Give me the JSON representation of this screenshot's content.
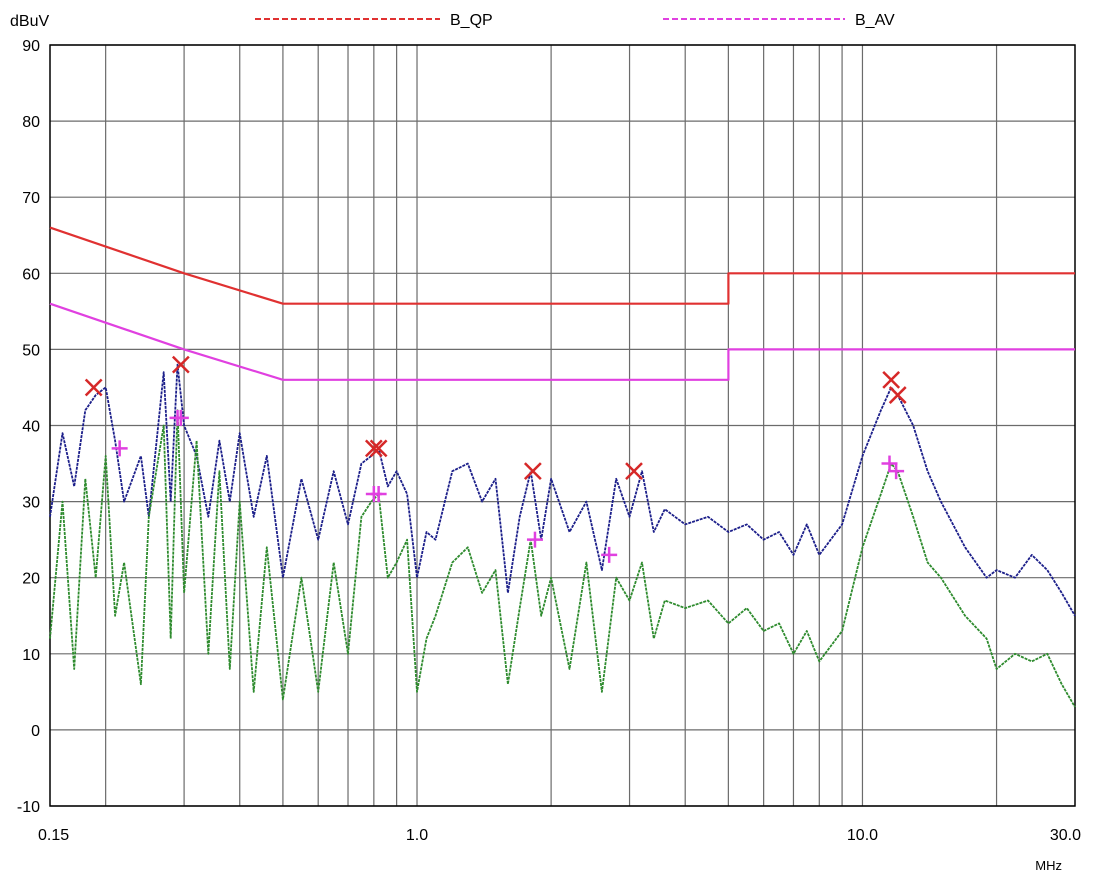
{
  "chart_data": {
    "type": "line",
    "xlabel": "MHz",
    "ylabel": "dBuV",
    "xscale": "log",
    "xlim": [
      0.15,
      30.0
    ],
    "ylim": [
      -10,
      90
    ],
    "grid": true,
    "legend_position": "top",
    "x_tick_labels": [
      {
        "value": 0.15,
        "label": "0.15"
      },
      {
        "value": 1.0,
        "label": "1.0"
      },
      {
        "value": 10.0,
        "label": "10.0"
      },
      {
        "value": 30.0,
        "label": "30.0"
      }
    ],
    "y_ticks": [
      -10,
      0,
      10,
      20,
      30,
      40,
      50,
      60,
      70,
      80,
      90
    ],
    "series": [
      {
        "name": "B_QP",
        "role": "limit",
        "color": "#e03131",
        "x": [
          0.15,
          0.3,
          0.5,
          5.0,
          5.0,
          30.0
        ],
        "y": [
          66,
          60,
          56,
          56,
          60,
          60
        ]
      },
      {
        "name": "B_AV",
        "role": "limit",
        "color": "#e040e0",
        "x": [
          0.15,
          0.3,
          0.5,
          5.0,
          5.0,
          30.0
        ],
        "y": [
          56,
          50,
          46,
          46,
          50,
          50
        ]
      },
      {
        "role": "measurement-peak",
        "color": "#1c1f8a",
        "x": [
          0.15,
          0.16,
          0.17,
          0.18,
          0.19,
          0.2,
          0.21,
          0.22,
          0.24,
          0.25,
          0.27,
          0.28,
          0.29,
          0.3,
          0.32,
          0.34,
          0.36,
          0.38,
          0.4,
          0.43,
          0.46,
          0.5,
          0.55,
          0.6,
          0.65,
          0.7,
          0.75,
          0.79,
          0.82,
          0.86,
          0.9,
          0.95,
          1.0,
          1.05,
          1.1,
          1.2,
          1.3,
          1.4,
          1.5,
          1.6,
          1.7,
          1.8,
          1.9,
          2.0,
          2.2,
          2.4,
          2.6,
          2.8,
          3.0,
          3.2,
          3.4,
          3.6,
          4.0,
          4.5,
          5.0,
          5.5,
          6.0,
          6.5,
          7.0,
          7.5,
          8.0,
          9.0,
          10.0,
          11.0,
          11.6,
          12.0,
          13.0,
          14.0,
          15.0,
          17.0,
          19.0,
          20.0,
          22.0,
          24.0,
          26.0,
          28.0,
          30.0
        ],
        "y": [
          28,
          39,
          32,
          42,
          44,
          45,
          38,
          30,
          36,
          28,
          47,
          30,
          48,
          40,
          36,
          28,
          38,
          30,
          39,
          28,
          36,
          20,
          33,
          25,
          34,
          27,
          35,
          36,
          37,
          32,
          34,
          31,
          20,
          26,
          25,
          34,
          35,
          30,
          33,
          18,
          28,
          34,
          25,
          33,
          26,
          30,
          21,
          33,
          28,
          34,
          26,
          29,
          27,
          28,
          26,
          27,
          25,
          26,
          23,
          27,
          23,
          27,
          36,
          42,
          45,
          44,
          40,
          34,
          30,
          24,
          20,
          21,
          20,
          23,
          21,
          18,
          15
        ]
      },
      {
        "role": "measurement-average",
        "color": "#2e8b2e",
        "x": [
          0.15,
          0.16,
          0.17,
          0.18,
          0.19,
          0.2,
          0.21,
          0.22,
          0.24,
          0.25,
          0.27,
          0.28,
          0.29,
          0.3,
          0.32,
          0.34,
          0.36,
          0.38,
          0.4,
          0.43,
          0.46,
          0.5,
          0.55,
          0.6,
          0.65,
          0.7,
          0.75,
          0.79,
          0.82,
          0.86,
          0.9,
          0.95,
          1.0,
          1.05,
          1.1,
          1.2,
          1.3,
          1.4,
          1.5,
          1.6,
          1.7,
          1.8,
          1.9,
          2.0,
          2.2,
          2.4,
          2.6,
          2.8,
          3.0,
          3.2,
          3.4,
          3.6,
          4.0,
          4.5,
          5.0,
          5.5,
          6.0,
          6.5,
          7.0,
          7.5,
          8.0,
          9.0,
          10.0,
          11.0,
          11.6,
          12.0,
          13.0,
          14.0,
          15.0,
          17.0,
          19.0,
          20.0,
          22.0,
          24.0,
          26.0,
          28.0,
          30.0
        ],
        "y": [
          12,
          30,
          8,
          33,
          20,
          36,
          15,
          22,
          6,
          28,
          40,
          12,
          42,
          18,
          38,
          10,
          34,
          8,
          30,
          5,
          24,
          4,
          20,
          5,
          22,
          10,
          28,
          30,
          31,
          20,
          22,
          25,
          5,
          12,
          15,
          22,
          24,
          18,
          21,
          6,
          16,
          25,
          15,
          20,
          8,
          22,
          5,
          20,
          17,
          22,
          12,
          17,
          16,
          17,
          14,
          16,
          13,
          14,
          10,
          13,
          9,
          13,
          24,
          31,
          35,
          34,
          28,
          22,
          20,
          15,
          12,
          8,
          10,
          9,
          10,
          6,
          3
        ]
      }
    ],
    "markers": {
      "qp_peaks": [
        {
          "x": 0.188,
          "y": 45
        },
        {
          "x": 0.295,
          "y": 48
        },
        {
          "x": 0.8,
          "y": 37
        },
        {
          "x": 0.82,
          "y": 37
        },
        {
          "x": 1.82,
          "y": 34
        },
        {
          "x": 3.07,
          "y": 34
        },
        {
          "x": 11.6,
          "y": 46
        },
        {
          "x": 12.0,
          "y": 44
        }
      ],
      "av_peaks": [
        {
          "x": 0.215,
          "y": 37
        },
        {
          "x": 0.29,
          "y": 41
        },
        {
          "x": 0.295,
          "y": 41
        },
        {
          "x": 0.8,
          "y": 31
        },
        {
          "x": 0.82,
          "y": 31
        },
        {
          "x": 1.84,
          "y": 25
        },
        {
          "x": 2.7,
          "y": 23
        },
        {
          "x": 11.5,
          "y": 35
        },
        {
          "x": 11.9,
          "y": 34
        }
      ],
      "qp_color": "#d62828",
      "av_color": "#e040e0"
    }
  }
}
